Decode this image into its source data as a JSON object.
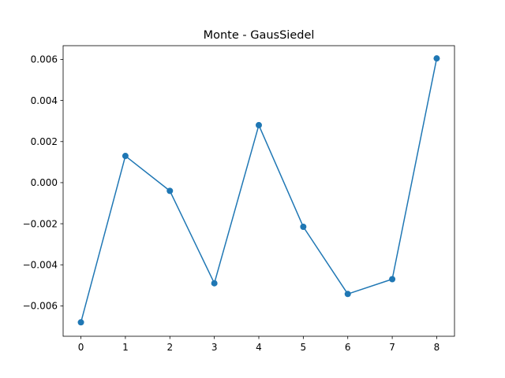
{
  "chart_data": {
    "type": "line",
    "title": "Monte - GausSiedel",
    "xlabel": "",
    "ylabel": "",
    "xlim": [
      -0.4,
      8.4
    ],
    "ylim": [
      -0.00748,
      0.00667
    ],
    "x_ticks": [
      0,
      1,
      2,
      3,
      4,
      5,
      6,
      7,
      8
    ],
    "y_ticks": [
      -0.006,
      -0.004,
      -0.002,
      0.0,
      0.002,
      0.004,
      0.006
    ],
    "y_tick_labels": [
      "−0.006",
      "−0.004",
      "−0.002",
      "0.000",
      "0.002",
      "0.004",
      "0.006"
    ],
    "grid": false,
    "series": [
      {
        "color": "#1f77b4",
        "marker": "circle",
        "x": [
          0,
          1,
          2,
          3,
          4,
          5,
          6,
          7,
          8
        ],
        "y": [
          -0.0068,
          0.0013,
          -0.0004,
          -0.0049,
          0.0028,
          -0.00215,
          -0.00542,
          -0.0047,
          0.00605
        ]
      }
    ]
  }
}
